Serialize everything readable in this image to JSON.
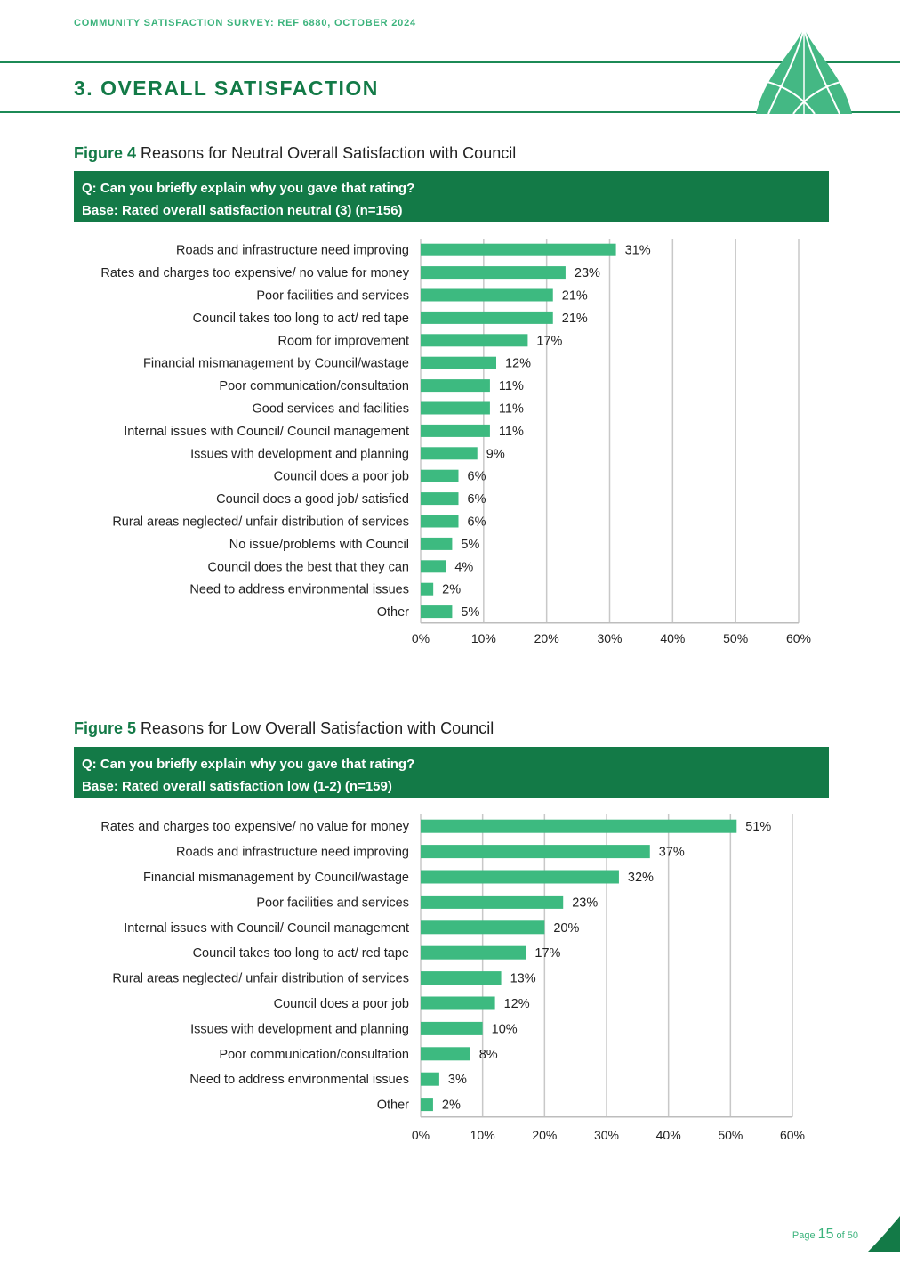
{
  "header": {
    "survey_ref": "COMMUNITY SATISFACTION SURVEY: REF 6880, OCTOBER 2024",
    "section_title": "3. OVERALL SATISFACTION"
  },
  "colors": {
    "brand_dark": "#137a47",
    "bar": "#3dba80",
    "accent": "#3bb37c",
    "grid": "#c8c8c8"
  },
  "figure4": {
    "label": "Figure 4",
    "title": "Reasons for Neutral Overall Satisfaction with Council",
    "question": "Q: Can you briefly explain why you gave that rating?",
    "base": "Base: Rated overall satisfaction neutral (3) (n=156)"
  },
  "figure5": {
    "label": "Figure 5",
    "title": "Reasons for Low Overall Satisfaction with Council",
    "question": "Q: Can you briefly explain why you gave that rating?",
    "base": "Base: Rated overall satisfaction low (1-2) (n=159)"
  },
  "chart_data": [
    {
      "type": "bar",
      "orientation": "horizontal",
      "categories": [
        "Roads and infrastructure need improving",
        "Rates and charges too expensive/ no value for money",
        "Poor facilities and services",
        "Council takes too long to act/ red tape",
        "Room for improvement",
        "Financial mismanagement by Council/wastage",
        "Poor communication/consultation",
        "Good services and facilities",
        "Internal issues with Council/ Council management",
        "Issues with development and planning",
        "Council does a poor job",
        "Council does a good job/ satisfied",
        "Rural areas neglected/ unfair distribution of services",
        "No issue/problems with Council",
        "Council does the best that they can",
        "Need to address environmental issues",
        "Other"
      ],
      "values": [
        31,
        23,
        21,
        21,
        17,
        12,
        11,
        11,
        11,
        9,
        6,
        6,
        6,
        5,
        4,
        2,
        5
      ],
      "value_labels": [
        "31%",
        "23%",
        "21%",
        "21%",
        "17%",
        "12%",
        "11%",
        "11%",
        "11%",
        "9%",
        "6%",
        "6%",
        "6%",
        "5%",
        "4%",
        "2%",
        "5%"
      ],
      "xlim": [
        0,
        60
      ],
      "xticks": [
        "0%",
        "10%",
        "20%",
        "30%",
        "40%",
        "50%",
        "60%"
      ],
      "grid": true
    },
    {
      "type": "bar",
      "orientation": "horizontal",
      "categories": [
        "Rates and charges too expensive/ no value for money",
        "Roads and infrastructure need improving",
        "Financial mismanagement by Council/wastage",
        "Poor facilities and services",
        "Internal issues with Council/ Council management",
        "Council takes too long to act/ red tape",
        "Rural areas neglected/ unfair distribution of services",
        "Council does a poor job",
        "Issues with development and planning",
        "Poor communication/consultation",
        "Need to address environmental issues",
        "Other"
      ],
      "values": [
        51,
        37,
        32,
        23,
        20,
        17,
        13,
        12,
        10,
        8,
        3,
        2
      ],
      "value_labels": [
        "51%",
        "37%",
        "32%",
        "23%",
        "20%",
        "17%",
        "13%",
        "12%",
        "10%",
        "8%",
        "3%",
        "2%"
      ],
      "xlim": [
        0,
        60
      ],
      "xticks": [
        "0%",
        "10%",
        "20%",
        "30%",
        "40%",
        "50%",
        "60%"
      ],
      "grid": true
    }
  ],
  "footer": {
    "page_word": "Page",
    "page_number": "15",
    "page_of": "of 50"
  }
}
